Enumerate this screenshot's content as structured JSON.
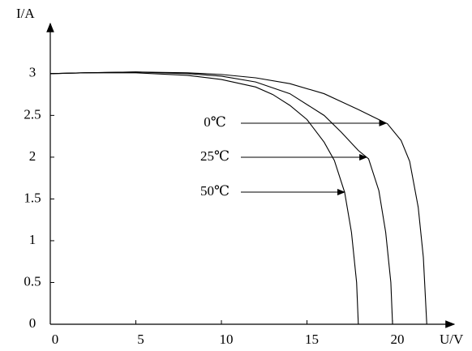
{
  "chart_data": {
    "type": "line",
    "xlabel": "U/V",
    "ylabel": "I/A",
    "xlim": [
      0,
      23.6
    ],
    "ylim": [
      0,
      3.6
    ],
    "xticks": [
      0,
      5,
      10,
      15,
      20
    ],
    "yticks": [
      0,
      0.5,
      1,
      1.5,
      2,
      2.5,
      3
    ],
    "series": [
      {
        "name": "0℃",
        "color": "#000000",
        "x": [
          0,
          2,
          5,
          8,
          10,
          12,
          14,
          16,
          18,
          19,
          19.7,
          20.5,
          21,
          21.5,
          21.8,
          22
        ],
        "values": [
          3.0,
          3.01,
          3.02,
          3.01,
          2.99,
          2.95,
          2.88,
          2.76,
          2.57,
          2.47,
          2.4,
          2.2,
          1.95,
          1.4,
          0.8,
          0
        ]
      },
      {
        "name": "25℃",
        "color": "#000000",
        "x": [
          0,
          2,
          5,
          8,
          10,
          12,
          14,
          16,
          17,
          18,
          18.6,
          19.2,
          19.6,
          19.9,
          20
        ],
        "values": [
          3.0,
          3.01,
          3.02,
          3.0,
          2.97,
          2.9,
          2.76,
          2.5,
          2.3,
          2.08,
          1.98,
          1.6,
          1.1,
          0.5,
          0
        ]
      },
      {
        "name": "50℃",
        "color": "#000000",
        "x": [
          0,
          2,
          5,
          8,
          10,
          12,
          13,
          14,
          15,
          16,
          16.6,
          17.2,
          17.6,
          17.9,
          18
        ],
        "values": [
          3.0,
          3.01,
          3.01,
          2.98,
          2.93,
          2.84,
          2.75,
          2.62,
          2.45,
          2.18,
          1.96,
          1.58,
          1.1,
          0.5,
          0
        ]
      }
    ]
  }
}
